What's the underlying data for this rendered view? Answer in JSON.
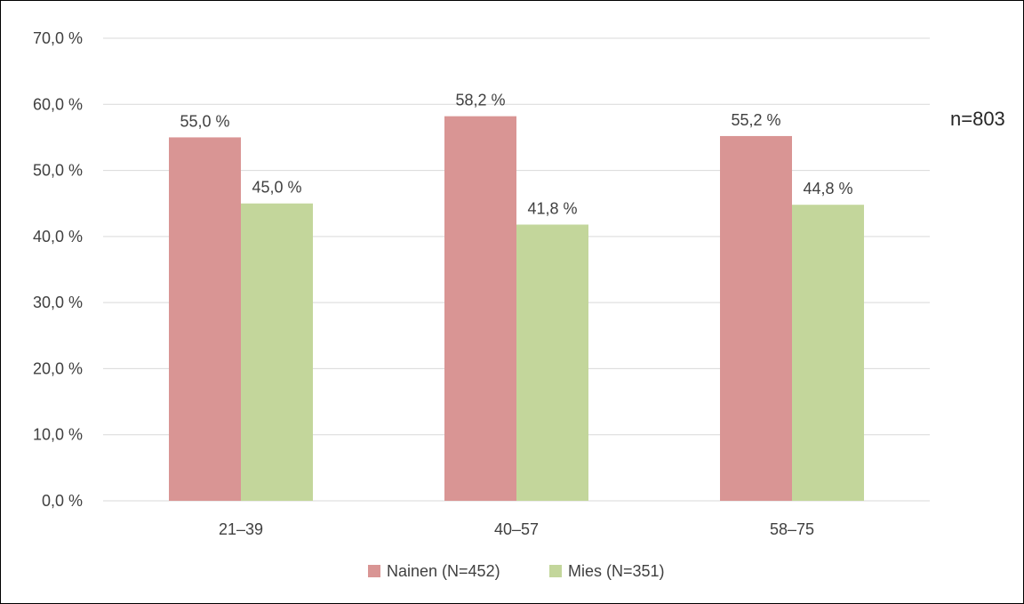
{
  "chart_data": {
    "type": "bar",
    "categories": [
      "21–39",
      "40–57",
      "58–75"
    ],
    "series": [
      {
        "name": "Nainen (N=452)",
        "values": [
          55.0,
          58.2,
          55.2
        ],
        "labels": [
          "55,0 %",
          "58,2 %",
          "55,2 %"
        ],
        "color": "#d99594"
      },
      {
        "name": "Mies (N=351)",
        "values": [
          45.0,
          41.8,
          44.8
        ],
        "labels": [
          "45,0 %",
          "41,8 %",
          "44,8 %"
        ],
        "color": "#c3d69b"
      }
    ],
    "ylim": [
      0,
      70
    ],
    "yticks": [
      0,
      10,
      20,
      30,
      40,
      50,
      60,
      70
    ],
    "ytick_labels": [
      "0,0 %",
      "10,0 %",
      "20,0 %",
      "30,0 %",
      "40,0 %",
      "50,0 %",
      "60,0 %",
      "70,0 %"
    ],
    "grid": true,
    "gridline_color": "#d9d9d9",
    "legend_position": "bottom",
    "annotation": "n=803"
  }
}
